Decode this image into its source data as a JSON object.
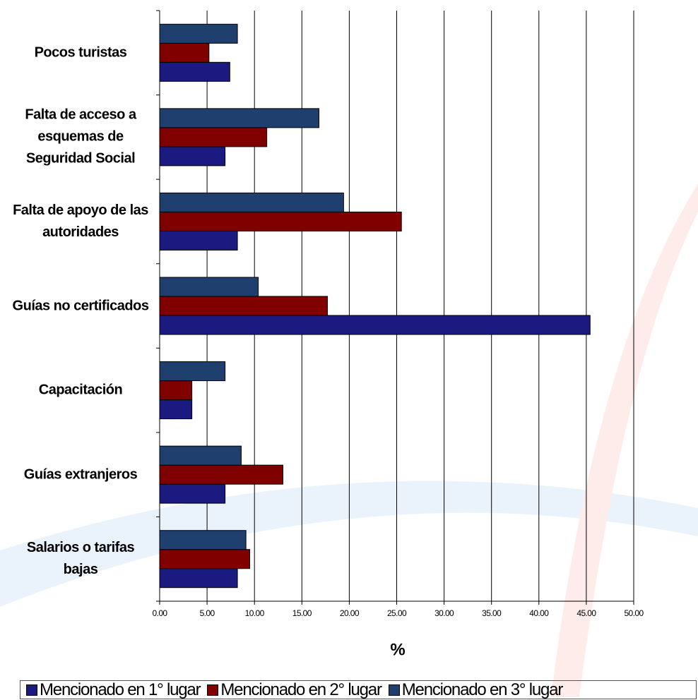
{
  "chart_data": {
    "type": "barh",
    "categories": [
      "Pocos turistas",
      "Falta de acceso a esquemas de Seguridad Social",
      "Falta de apoyo de las autoridades",
      "Guías no certificados",
      "Capacitación",
      "Guías extranjeros",
      "Salarios o tarifas bajas"
    ],
    "series": [
      {
        "name": "Mencionado en 1° lugar",
        "color": "#1a1a80",
        "values": [
          7.4,
          6.9,
          8.2,
          45.4,
          3.4,
          6.9,
          8.2
        ]
      },
      {
        "name": "Mencionado en 2° lugar",
        "color": "#800000",
        "values": [
          5.2,
          11.3,
          25.5,
          17.7,
          3.4,
          13.0,
          9.5
        ]
      },
      {
        "name": "Mencionado en 3° lugar",
        "color": "#1f3f6f",
        "values": [
          8.2,
          16.8,
          19.4,
          10.4,
          6.9,
          8.6,
          9.1
        ]
      }
    ],
    "xlabel": "%",
    "xlim": [
      0,
      50
    ],
    "xticks": [
      {
        "value": 0,
        "label": "0.00"
      },
      {
        "value": 5,
        "label": "5.00"
      },
      {
        "value": 10,
        "label": "10.00"
      },
      {
        "value": 15,
        "label": "15.00"
      },
      {
        "value": 20,
        "label": "20.00"
      },
      {
        "value": 25,
        "label": "25.00"
      },
      {
        "value": 30,
        "label": "30.00"
      },
      {
        "value": 35,
        "label": "35.00"
      },
      {
        "value": 40,
        "label": "40.00"
      },
      {
        "value": 45,
        "label": "45.00"
      },
      {
        "value": 50,
        "label": "50.00"
      }
    ],
    "grid": true
  }
}
